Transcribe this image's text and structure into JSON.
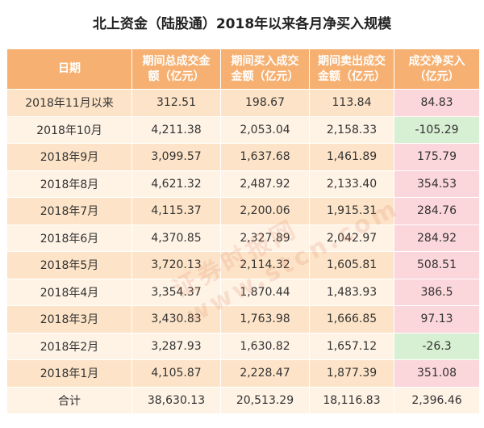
{
  "title": "北上资金（陆股通）2018年以来各月净买入规模",
  "watermark": "证券时报网 www.stcn.com",
  "chart_data": {
    "type": "table",
    "columns": [
      "日期",
      "期间总成交金额（亿元）",
      "期间买入成交金额（亿元）",
      "期间卖出成交金额（亿元）",
      "成交净买入（亿元）"
    ],
    "header_lines": [
      [
        "日期"
      ],
      [
        "期间总成交金",
        "额（亿元）"
      ],
      [
        "期间买入成交",
        "金额（亿元）"
      ],
      [
        "期间卖出成交",
        "金额（亿元）"
      ],
      [
        "成交净买入",
        "（亿元）"
      ]
    ],
    "rows": [
      {
        "label": "2018年11月以来",
        "total": "312.51",
        "buy": "198.67",
        "sell": "113.84",
        "net": "84.83",
        "sign": "pos"
      },
      {
        "label": "2018年10月",
        "total": "4,211.38",
        "buy": "2,053.04",
        "sell": "2,158.33",
        "net": "-105.29",
        "sign": "neg"
      },
      {
        "label": "2018年9月",
        "total": "3,099.57",
        "buy": "1,637.68",
        "sell": "1,461.89",
        "net": "175.79",
        "sign": "pos"
      },
      {
        "label": "2018年8月",
        "total": "4,621.32",
        "buy": "2,487.92",
        "sell": "2,133.40",
        "net": "354.53",
        "sign": "pos"
      },
      {
        "label": "2018年7月",
        "total": "4,115.37",
        "buy": "2,200.06",
        "sell": "1,915.31",
        "net": "284.76",
        "sign": "pos"
      },
      {
        "label": "2018年6月",
        "total": "4,370.85",
        "buy": "2,327.89",
        "sell": "2,042.97",
        "net": "284.92",
        "sign": "pos"
      },
      {
        "label": "2018年5月",
        "total": "3,720.13",
        "buy": "2,114.32",
        "sell": "1,605.81",
        "net": "508.51",
        "sign": "pos"
      },
      {
        "label": "2018年4月",
        "total": "3,354.37",
        "buy": "1,870.44",
        "sell": "1,483.93",
        "net": "386.5",
        "sign": "pos"
      },
      {
        "label": "2018年3月",
        "total": "3,430.83",
        "buy": "1,763.98",
        "sell": "1,666.85",
        "net": "97.13",
        "sign": "pos"
      },
      {
        "label": "2018年2月",
        "total": "3,287.93",
        "buy": "1,630.82",
        "sell": "1,657.12",
        "net": "-26.3",
        "sign": "neg"
      },
      {
        "label": "2018年1月",
        "total": "4,105.87",
        "buy": "2,228.47",
        "sell": "1,877.39",
        "net": "351.08",
        "sign": "pos"
      }
    ],
    "total_row": {
      "label": "合计",
      "total": "38,630.13",
      "buy": "20,513.29",
      "sell": "18,116.83",
      "net": "2,396.46"
    },
    "colors": {
      "header_bg": "#f6b172",
      "row_dark": "#fde4c8",
      "row_light": "#fff3e6",
      "positive_bg": "#fbd6da",
      "positive_text": "#b0242c",
      "negative_bg": "#d7efd2",
      "negative_text": "#2a7a1f"
    }
  }
}
